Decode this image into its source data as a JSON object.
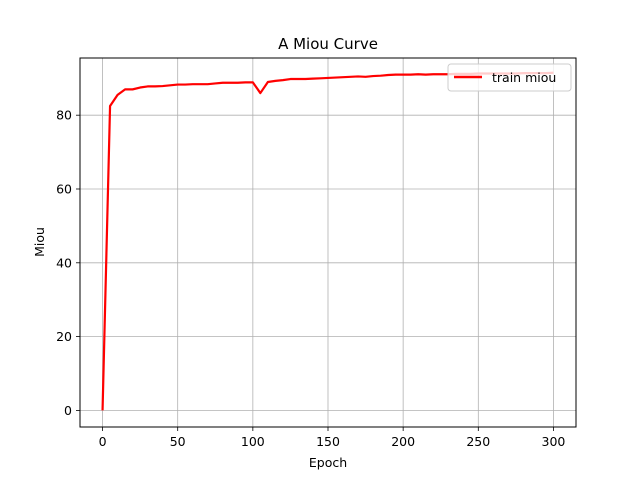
{
  "chart_data": {
    "type": "line",
    "title": "A Miou Curve",
    "xlabel": "Epoch",
    "ylabel": "Miou",
    "xlim": [
      -15,
      315
    ],
    "ylim": [
      -4.5,
      95.5
    ],
    "xticks": [
      0,
      50,
      100,
      150,
      200,
      250,
      300
    ],
    "yticks": [
      0,
      20,
      40,
      60,
      80
    ],
    "grid": true,
    "legend_position": "top-right",
    "series": [
      {
        "name": "train miou",
        "color": "#ff0000",
        "x": [
          0,
          5,
          10,
          15,
          20,
          25,
          30,
          35,
          40,
          45,
          50,
          55,
          60,
          65,
          70,
          75,
          80,
          85,
          90,
          95,
          100,
          105,
          110,
          115,
          120,
          125,
          130,
          135,
          140,
          145,
          150,
          155,
          160,
          165,
          170,
          175,
          180,
          185,
          190,
          195,
          200,
          205,
          210,
          215,
          220,
          225,
          230,
          235,
          240,
          245,
          250,
          255,
          260,
          265,
          270,
          275,
          280,
          285,
          290,
          295,
          300
        ],
        "y": [
          0,
          82.5,
          85.5,
          87.0,
          87.0,
          87.5,
          87.8,
          87.8,
          87.9,
          88.1,
          88.3,
          88.3,
          88.4,
          88.4,
          88.4,
          88.6,
          88.8,
          88.8,
          88.8,
          88.9,
          88.9,
          86.0,
          89.0,
          89.3,
          89.5,
          89.8,
          89.8,
          89.8,
          89.9,
          90.0,
          90.1,
          90.2,
          90.3,
          90.4,
          90.5,
          90.4,
          90.6,
          90.7,
          90.9,
          91.0,
          91.0,
          91.0,
          91.1,
          91.0,
          91.1,
          91.1,
          91.1,
          91.2,
          91.2,
          91.2,
          91.3,
          91.3,
          91.3,
          91.3,
          91.3,
          91.3,
          91.4,
          91.4,
          91.4,
          91.4,
          91.5
        ]
      }
    ]
  }
}
